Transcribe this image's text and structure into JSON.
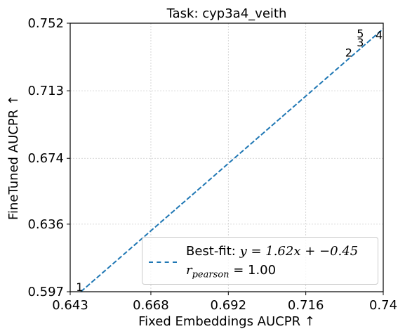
{
  "chart_data": {
    "type": "scatter",
    "title": "Task: cyp3a4_veith",
    "xlabel": "Fixed Embeddings AUCPR ↑",
    "ylabel": "FineTuned AUCPR ↑",
    "xlim": [
      0.643,
      0.74
    ],
    "ylim": [
      0.597,
      0.752
    ],
    "x_ticks": [
      "0.643",
      "0.668",
      "0.692",
      "0.716",
      "0.74"
    ],
    "y_ticks": [
      "0.597",
      "0.636",
      "0.674",
      "0.713",
      "0.752"
    ],
    "grid": true,
    "points": [
      {
        "label": "1",
        "x": 0.6448,
        "y": 0.5987
      },
      {
        "label": "2",
        "x": 0.7282,
        "y": 0.734
      },
      {
        "label": "3",
        "x": 0.7318,
        "y": 0.7398
      },
      {
        "label": "4",
        "x": 0.7376,
        "y": 0.744
      },
      {
        "label": "5",
        "x": 0.7318,
        "y": 0.7449
      }
    ],
    "fit_line": {
      "slope": 1.62,
      "intercept": -0.45,
      "color": "#1f77b4",
      "style": "dashed"
    },
    "legend": {
      "placement": "lower-right",
      "fit_label": "Best-fit:",
      "fit_equation": "y = 1.62x + −0.45",
      "r_symbol": "r",
      "r_sub": "pearson",
      "r_value": "= 1.00"
    }
  }
}
